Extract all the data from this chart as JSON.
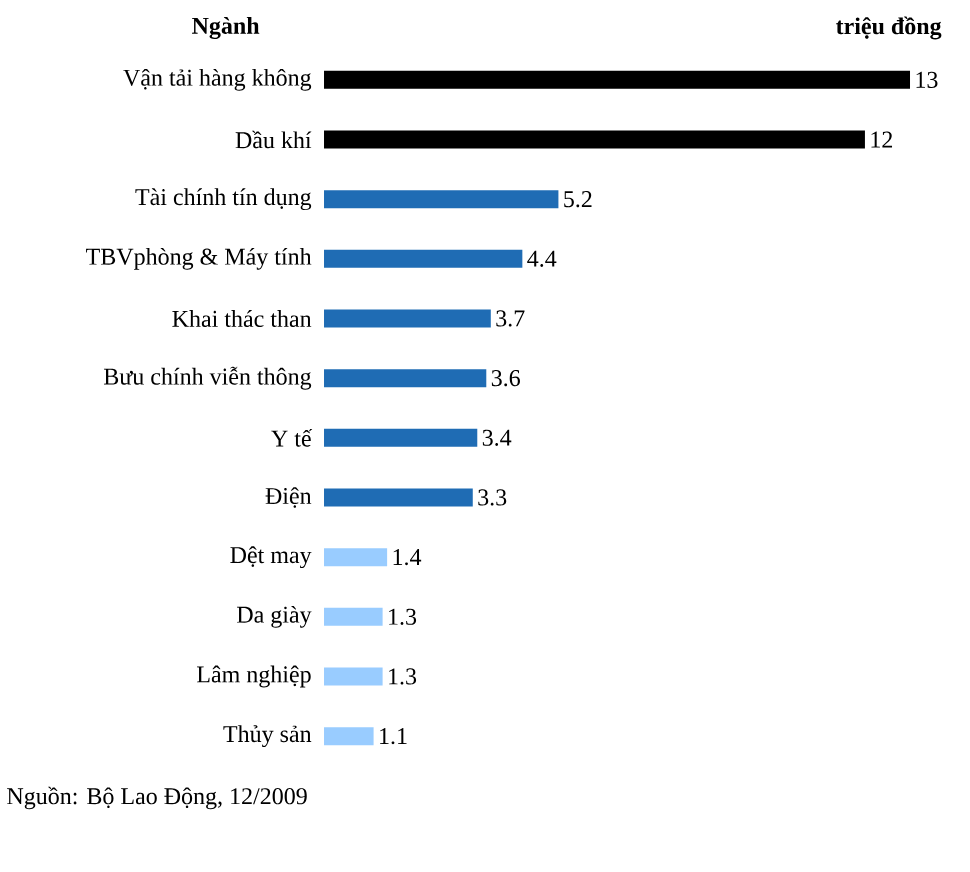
{
  "chart_data": {
    "type": "bar",
    "orientation": "horizontal",
    "ylabel": "Ngành",
    "xlabel": "triệu đồng",
    "categories": [
      "Vận tải hàng không",
      "Dầu khí",
      "Tài chính tín dụng",
      "TBVphòng & Máy tính",
      "Khai thác than",
      "Bưu chính viễn thông",
      "Y tế",
      "Điện",
      "Dệt may",
      "Da giày",
      "Lâm nghiệp",
      "Thủy sản"
    ],
    "values": [
      13,
      12,
      5.2,
      4.4,
      3.7,
      3.6,
      3.4,
      3.3,
      1.4,
      1.3,
      1.3,
      1.1
    ],
    "colors": [
      "#000000",
      "#000000",
      "#1f6cb4",
      "#1f6cb4",
      "#1f6cb4",
      "#1f6cb4",
      "#1f6cb4",
      "#1f6cb4",
      "#99ccff",
      "#99ccff",
      "#99ccff",
      "#99ccff"
    ],
    "data_labels": true,
    "annotations": [
      "Nguồn: Bộ Lao Động, 12/2009"
    ]
  }
}
